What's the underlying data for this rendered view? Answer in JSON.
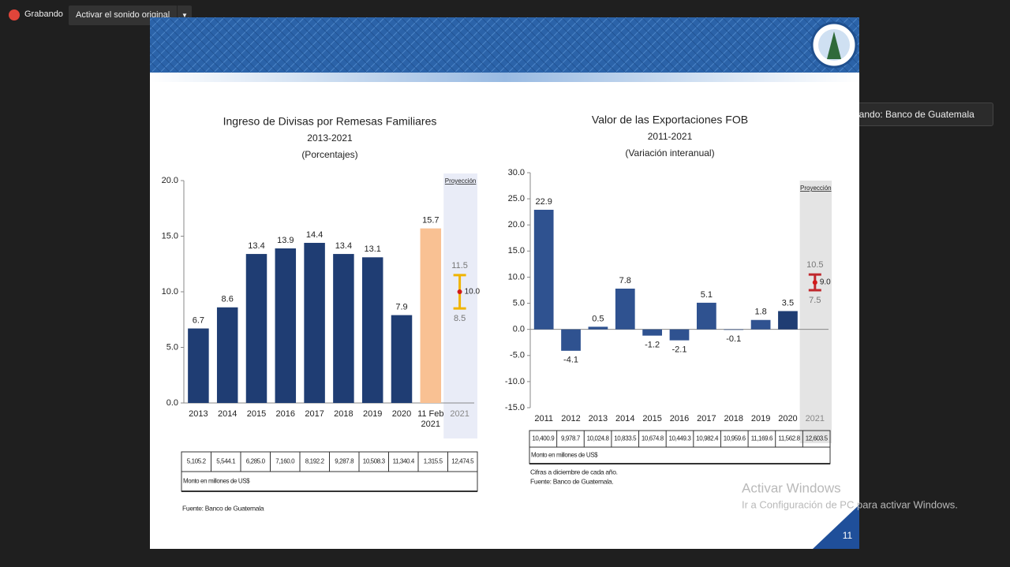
{
  "ui": {
    "recording": "Grabando",
    "audio_button": "Activar el sonido original",
    "speaking": "Hablando: Banco de Guatemala",
    "watermark_title": "Activar Windows",
    "watermark_text": "Ir a Configuración de PC para activar Windows.",
    "slide_number": "11"
  },
  "chart_data": [
    {
      "type": "bar",
      "title": "Ingreso de Divisas por Remesas Familiares",
      "subtitle": "2013-2021",
      "unit": "(Porcentajes)",
      "categories": [
        "2013",
        "2014",
        "2015",
        "2016",
        "2017",
        "2018",
        "2019",
        "2020",
        "11 Feb 2021",
        "2021"
      ],
      "values": [
        6.7,
        8.6,
        13.4,
        13.9,
        14.4,
        13.4,
        13.1,
        7.9,
        15.7,
        null
      ],
      "colors": [
        "#1f3d73",
        "#1f3d73",
        "#1f3d73",
        "#1f3d73",
        "#1f3d73",
        "#1f3d73",
        "#1f3d73",
        "#1f3d73",
        "#f9c193",
        "#e9ecf7"
      ],
      "ylim": [
        0,
        20
      ],
      "yticks": [
        {
          "value": 0,
          "label": "0.0"
        },
        {
          "value": 5,
          "label": "5.0"
        },
        {
          "value": 10,
          "label": "10.0"
        },
        {
          "value": 15,
          "label": "15.0"
        },
        {
          "value": 20,
          "label": "20.0"
        }
      ],
      "projection": {
        "label": "Proyección",
        "values": [
          11.5,
          10.0,
          8.5
        ],
        "value_labels": [
          "11.5",
          "10.0",
          "8.5"
        ],
        "color": "#f0b400"
      },
      "table": {
        "values": [
          "5,105.2",
          "5,544.1",
          "6,285.0",
          "7,160.0",
          "8,192.2",
          "9,287.8",
          "10,508.3",
          "11,340.4",
          "1,315.5",
          "12,474.5"
        ],
        "note": "Monto en millones de US$"
      },
      "footnotes": [
        "Fuente: Banco de Guatemala"
      ]
    },
    {
      "type": "bar",
      "title": "Valor de las Exportaciones FOB",
      "subtitle": "2011-2021",
      "unit": "(Variación interanual)",
      "categories": [
        "2011",
        "2012",
        "2013",
        "2014",
        "2015",
        "2016",
        "2017",
        "2018",
        "2019",
        "2020",
        "2021"
      ],
      "values": [
        22.9,
        -4.1,
        0.5,
        7.8,
        -1.2,
        -2.1,
        5.1,
        -0.1,
        1.8,
        3.5,
        null
      ],
      "colors": [
        "#2f5290",
        "#2f5290",
        "#2f5290",
        "#2f5290",
        "#2f5290",
        "#2f5290",
        "#2f5290",
        "#2f5290",
        "#2f5290",
        "#1f3d73",
        "#e4e4e4"
      ],
      "ylim": [
        -15,
        30
      ],
      "yticks": [
        {
          "value": -15,
          "label": "-15.0"
        },
        {
          "value": -10,
          "label": "-10.0"
        },
        {
          "value": -5,
          "label": "-5.0"
        },
        {
          "value": 0,
          "label": "0.0"
        },
        {
          "value": 5,
          "label": "5.0"
        },
        {
          "value": 10,
          "label": "10.0"
        },
        {
          "value": 15,
          "label": "15.0"
        },
        {
          "value": 20,
          "label": "20.0"
        },
        {
          "value": 25,
          "label": "25.0"
        },
        {
          "value": 30,
          "label": "30.0"
        }
      ],
      "projection": {
        "label": "Proyección",
        "values": [
          10.5,
          9.0,
          7.5
        ],
        "value_labels": [
          "10.5",
          "9.0",
          "7.5"
        ],
        "color": "#c0282d"
      },
      "table": {
        "values": [
          "10,400.9",
          "9,978.7",
          "10,024.8",
          "10,833.5",
          "10,674.8",
          "10,449.3",
          "10,982.4",
          "10,959.6",
          "11,169.6",
          "11,562.8",
          "12,603.5"
        ],
        "note": "Monto en millones de US$"
      },
      "footnotes": [
        "Cifras a diciembre de cada año.",
        "Fuente: Banco de Guatemala."
      ]
    }
  ]
}
